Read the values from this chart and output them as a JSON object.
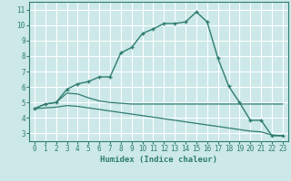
{
  "title": "",
  "xlabel": "Humidex (Indice chaleur)",
  "xlim": [
    -0.5,
    23.5
  ],
  "ylim": [
    2.5,
    11.5
  ],
  "yticks": [
    3,
    4,
    5,
    6,
    7,
    8,
    9,
    10,
    11
  ],
  "xticks": [
    0,
    1,
    2,
    3,
    4,
    5,
    6,
    7,
    8,
    9,
    10,
    11,
    12,
    13,
    14,
    15,
    16,
    17,
    18,
    19,
    20,
    21,
    22,
    23
  ],
  "bg_color": "#cce8e8",
  "line_color": "#2e7d6e",
  "grid_color": "#ffffff",
  "line1_x": [
    0,
    1,
    2,
    3,
    4,
    5,
    6,
    7,
    8,
    9,
    10,
    11,
    12,
    13,
    14,
    15,
    16,
    17,
    18,
    19,
    20,
    21,
    22,
    23
  ],
  "line1_y": [
    4.6,
    4.9,
    5.0,
    5.85,
    6.2,
    6.35,
    6.65,
    6.65,
    8.2,
    8.55,
    9.45,
    9.75,
    10.1,
    10.1,
    10.2,
    10.85,
    10.2,
    7.85,
    6.05,
    5.0,
    3.85,
    3.85,
    2.85,
    2.85
  ],
  "line2_x": [
    0,
    1,
    2,
    3,
    4,
    5,
    6,
    7,
    8,
    9,
    10,
    11,
    12,
    13,
    14,
    15,
    16,
    17,
    18,
    19,
    20,
    21,
    22,
    23
  ],
  "line2_y": [
    4.6,
    4.9,
    5.0,
    5.6,
    5.55,
    5.3,
    5.1,
    5.0,
    4.95,
    4.9,
    4.9,
    4.9,
    4.9,
    4.9,
    4.9,
    4.9,
    4.9,
    4.9,
    4.9,
    4.9,
    4.9,
    4.9,
    4.9,
    4.9
  ],
  "line3_x": [
    0,
    1,
    2,
    3,
    4,
    5,
    6,
    7,
    8,
    9,
    10,
    11,
    12,
    13,
    14,
    15,
    16,
    17,
    18,
    19,
    20,
    21,
    22,
    23
  ],
  "line3_y": [
    4.6,
    4.65,
    4.7,
    4.8,
    4.75,
    4.65,
    4.55,
    4.45,
    4.35,
    4.25,
    4.15,
    4.05,
    3.95,
    3.85,
    3.75,
    3.65,
    3.55,
    3.45,
    3.35,
    3.25,
    3.15,
    3.1,
    2.9,
    2.85
  ]
}
